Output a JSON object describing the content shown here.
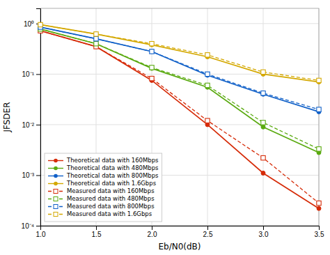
{
  "chart_data": {
    "type": "line",
    "x": [
      1.0,
      1.5,
      2.0,
      2.5,
      3.0,
      3.5
    ],
    "xlabel": "Eb/N0(dB)",
    "ylabel": "JFSDER",
    "log": "y",
    "grid": true,
    "legend": "lower left",
    "xlim": [
      1.0,
      3.5
    ],
    "ylim": [
      0.0001,
      2.0
    ],
    "xticks": [
      {
        "value": 1.0,
        "label": "1.0"
      },
      1.5,
      {
        "value": 2.0,
        "label": "2.0"
      },
      2.5,
      {
        "value": 3.0,
        "label": "3.0"
      },
      3.5
    ],
    "yticks": [
      {
        "value": 0.0001,
        "label": "10⁻⁴"
      },
      {
        "value": 0.001,
        "label": "10⁻³"
      },
      {
        "value": 0.01,
        "label": "10⁻²"
      },
      {
        "value": 0.1,
        "label": "10⁻¹"
      },
      {
        "value": 1,
        "label": "10⁰"
      }
    ],
    "series": [
      {
        "name": "Theoretical data with 160Mbps",
        "color": "#d62b08",
        "marker": "circle",
        "line_style": "solid",
        "values": [
          0.72,
          0.35,
          0.075,
          0.01,
          0.0011,
          0.00022
        ]
      },
      {
        "name": "Theoretical data with 480Mbps",
        "color": "#5aaa10",
        "marker": "circle",
        "line_style": "solid",
        "values": [
          0.78,
          0.4,
          0.13,
          0.055,
          0.009,
          0.0028
        ]
      },
      {
        "name": "Theoretical data with 800Mbps",
        "color": "#1060c8",
        "marker": "circle",
        "line_style": "solid",
        "values": [
          0.85,
          0.5,
          0.28,
          0.095,
          0.04,
          0.018
        ]
      },
      {
        "name": "Theoretical data with 1.6Gbps",
        "color": "#d4a800",
        "marker": "circle",
        "line_style": "solid",
        "values": [
          0.95,
          0.62,
          0.38,
          0.22,
          0.1,
          0.07
        ]
      },
      {
        "name": "Measured data with 160Mbps",
        "color": "#d62b08",
        "marker": "square",
        "line_style": "dashed",
        "values": [
          0.72,
          0.35,
          0.082,
          0.012,
          0.0022,
          0.00028
        ]
      },
      {
        "name": "Measured data with 480Mbps",
        "color": "#5aaa10",
        "marker": "square",
        "line_style": "dashed",
        "values": [
          0.78,
          0.4,
          0.135,
          0.06,
          0.011,
          0.0033
        ]
      },
      {
        "name": "Measured data with 800Mbps",
        "color": "#1060c8",
        "marker": "square",
        "line_style": "dashed",
        "values": [
          0.85,
          0.5,
          0.28,
          0.1,
          0.042,
          0.02
        ]
      },
      {
        "name": "Measured data with 1.6Gbps",
        "color": "#d4a800",
        "marker": "square",
        "line_style": "dashed",
        "values": [
          0.95,
          0.62,
          0.4,
          0.24,
          0.11,
          0.075
        ]
      }
    ]
  }
}
